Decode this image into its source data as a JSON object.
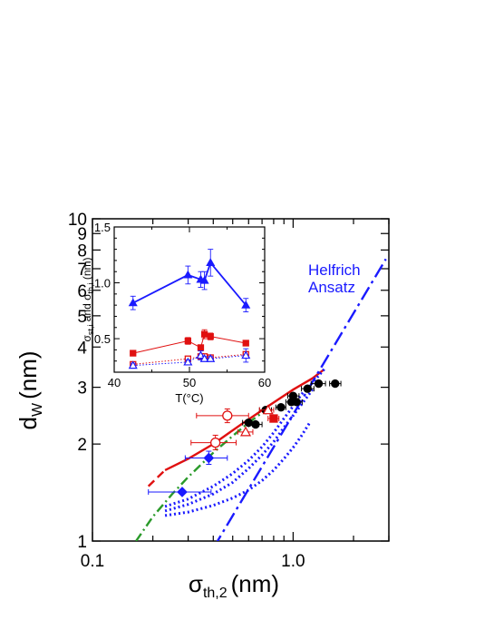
{
  "chart_data": [
    {
      "type": "scatter",
      "scale": "log-log",
      "xlabel": {
        "main": "σ",
        "sub": "th,2",
        "unit": "(nm)"
      },
      "ylabel": {
        "main": "d",
        "sub": "W",
        "unit": "(nm)"
      },
      "xlim": [
        0.1,
        3.0
      ],
      "ylim": [
        1,
        10
      ],
      "xtick_labels": [
        "0.1",
        "1.0"
      ],
      "ytick_labels": [
        "1",
        "2",
        "3",
        "4",
        "5",
        "6",
        "7",
        "8",
        "9",
        "10"
      ],
      "annotation": {
        "line1": "Helfrich",
        "line2": "Ansatz",
        "color": "#1a1aff"
      },
      "series": [
        {
          "kind": "points",
          "marker": "filled-circle",
          "color": "#000000",
          "points": [
            {
              "x": 0.6,
              "y": 2.33,
              "xerr": [
                0.56,
                0.65
              ]
            },
            {
              "x": 0.65,
              "y": 2.3,
              "xerr": [
                0.6,
                0.7
              ]
            },
            {
              "x": 0.73,
              "y": 2.55,
              "xerr": [
                0.68,
                0.78
              ]
            },
            {
              "x": 0.87,
              "y": 2.6,
              "xerr": [
                0.82,
                0.92
              ]
            },
            {
              "x": 0.98,
              "y": 2.7,
              "xerr": [
                0.92,
                1.04
              ]
            },
            {
              "x": 1.0,
              "y": 2.82,
              "xerr": [
                0.94,
                1.07
              ]
            },
            {
              "x": 1.04,
              "y": 2.7,
              "xerr": [
                0.97,
                1.11
              ]
            },
            {
              "x": 1.18,
              "y": 2.97,
              "xerr": [
                1.1,
                1.27
              ]
            },
            {
              "x": 1.34,
              "y": 3.08,
              "xerr": [
                1.23,
                1.45
              ]
            },
            {
              "x": 1.62,
              "y": 3.08,
              "xerr": [
                1.52,
                1.73
              ]
            }
          ]
        },
        {
          "kind": "points",
          "marker": "open-circle",
          "color": "#e01010",
          "points": [
            {
              "x": 0.47,
              "y": 2.45,
              "xerr": [
                0.33,
                0.6
              ],
              "yerr": [
                2.33,
                2.57
              ]
            },
            {
              "x": 0.41,
              "y": 2.02,
              "xerr": [
                0.31,
                0.52
              ],
              "yerr": [
                1.92,
                2.13
              ]
            }
          ]
        },
        {
          "kind": "points",
          "marker": "open-triangle",
          "color": "#e01010",
          "points": [
            {
              "x": 0.58,
              "y": 2.18,
              "xerr": [
                0.53,
                0.63
              ]
            },
            {
              "x": 0.75,
              "y": 2.55,
              "xerr": [
                0.68,
                0.8
              ]
            }
          ]
        },
        {
          "kind": "points",
          "marker": "filled-square",
          "color": "#e01010",
          "points": [
            {
              "x": 0.8,
              "y": 2.4,
              "xerr": [
                0.75,
                0.85
              ]
            }
          ]
        },
        {
          "kind": "points",
          "marker": "filled-diamond",
          "color": "#1a1aff",
          "points": [
            {
              "x": 0.38,
              "y": 1.81,
              "xerr": [
                0.29,
                0.47
              ],
              "yerr": [
                1.73,
                1.9
              ]
            },
            {
              "x": 0.28,
              "y": 1.42,
              "xerr": [
                0.19,
                0.39
              ]
            }
          ]
        },
        {
          "kind": "line",
          "style": "solid",
          "color": "#e01010",
          "x": [
            0.23,
            0.3,
            0.4,
            0.55,
            0.75,
            1.0,
            1.25,
            1.42
          ],
          "y": [
            1.66,
            1.8,
            2.0,
            2.3,
            2.62,
            2.95,
            3.2,
            3.4
          ]
        },
        {
          "kind": "line",
          "style": "dashed",
          "color": "#e01010",
          "x": [
            0.19,
            0.23
          ],
          "y": [
            1.48,
            1.66
          ]
        },
        {
          "kind": "line",
          "style": "dash-dot",
          "color": "#2a9a2a",
          "x": [
            0.165,
            0.2,
            0.25,
            0.3,
            0.4,
            0.5,
            0.6,
            0.7
          ],
          "y": [
            1.0,
            1.19,
            1.4,
            1.58,
            1.88,
            2.12,
            2.33,
            2.5
          ]
        },
        {
          "kind": "line",
          "style": "dotted",
          "color": "#1a1aff",
          "x": [
            0.23,
            0.3,
            0.4,
            0.5,
            0.6,
            0.7,
            0.8,
            0.9,
            1.0,
            1.1,
            1.25,
            1.45
          ],
          "y": [
            1.28,
            1.35,
            1.48,
            1.62,
            1.78,
            1.96,
            2.17,
            2.4,
            2.62,
            2.85,
            3.1,
            3.45
          ]
        },
        {
          "kind": "line",
          "style": "dotted",
          "color": "#1a1aff",
          "x": [
            0.23,
            0.3,
            0.4,
            0.5,
            0.6,
            0.7,
            0.8,
            0.9,
            1.0,
            1.1,
            1.25
          ],
          "y": [
            1.24,
            1.3,
            1.4,
            1.52,
            1.68,
            1.85,
            2.03,
            2.25,
            2.45,
            2.65,
            2.95
          ]
        },
        {
          "kind": "line",
          "style": "dotted",
          "color": "#1a1aff",
          "x": [
            0.23,
            0.3,
            0.4,
            0.5,
            0.6,
            0.7,
            0.8,
            0.9,
            1.0,
            1.1,
            1.22
          ],
          "y": [
            1.2,
            1.23,
            1.29,
            1.36,
            1.44,
            1.54,
            1.66,
            1.8,
            1.95,
            2.12,
            2.35
          ]
        },
        {
          "kind": "line",
          "style": "long-dash-dot",
          "color": "#1a1aff",
          "x": [
            0.4,
            2.9
          ],
          "y": [
            0.95,
            7.5
          ]
        }
      ]
    },
    {
      "type": "line",
      "inset": true,
      "xlabel": "T(°C)",
      "ylabel": "σ",
      "ylabel_parts": [
        "σ",
        "st,i",
        " and σ",
        "th,i",
        " (nm)"
      ],
      "xlim": [
        40,
        60
      ],
      "ylim": [
        0.2,
        1.5
      ],
      "xtick_labels": [
        "40",
        "50",
        "60"
      ],
      "ytick_labels": [
        "0.5",
        "1.0",
        "1.5"
      ],
      "series": [
        {
          "marker": "filled-triangle",
          "color": "#1a1aff",
          "line": "solid",
          "x": [
            42.5,
            49.8,
            51.5,
            52.0,
            52.8,
            57.5
          ],
          "y": [
            0.82,
            1.07,
            1.03,
            1.02,
            1.18,
            0.8
          ],
          "err": [
            0.06,
            0.08,
            0.07,
            0.08,
            0.12,
            0.06
          ]
        },
        {
          "marker": "filled-square",
          "color": "#e01010",
          "line": "solid-thin",
          "x": [
            42.5,
            49.8,
            51.5,
            52.0,
            52.8,
            57.5
          ],
          "y": [
            0.37,
            0.48,
            0.42,
            0.54,
            0.52,
            0.46
          ],
          "err": [
            0.02,
            0.03,
            0.02,
            0.04,
            0.03,
            0.02
          ]
        },
        {
          "marker": "open-square",
          "color": "#e01010",
          "line": "dotted",
          "x": [
            42.5,
            49.8,
            51.5,
            52.0,
            52.8,
            57.5
          ],
          "y": [
            0.27,
            0.32,
            0.34,
            0.34,
            0.33,
            0.36
          ],
          "err": [
            0.015,
            0.02,
            0.02,
            0.02,
            0.02,
            0.02
          ]
        },
        {
          "marker": "open-triangle",
          "color": "#1a1aff",
          "line": "dotted",
          "x": [
            42.5,
            49.8,
            51.5,
            52.0,
            52.8,
            57.5
          ],
          "y": [
            0.26,
            0.29,
            0.35,
            0.32,
            0.32,
            0.35
          ],
          "err": [
            0.02,
            0.02,
            0.04,
            0.02,
            0.02,
            0.06
          ]
        }
      ]
    }
  ]
}
